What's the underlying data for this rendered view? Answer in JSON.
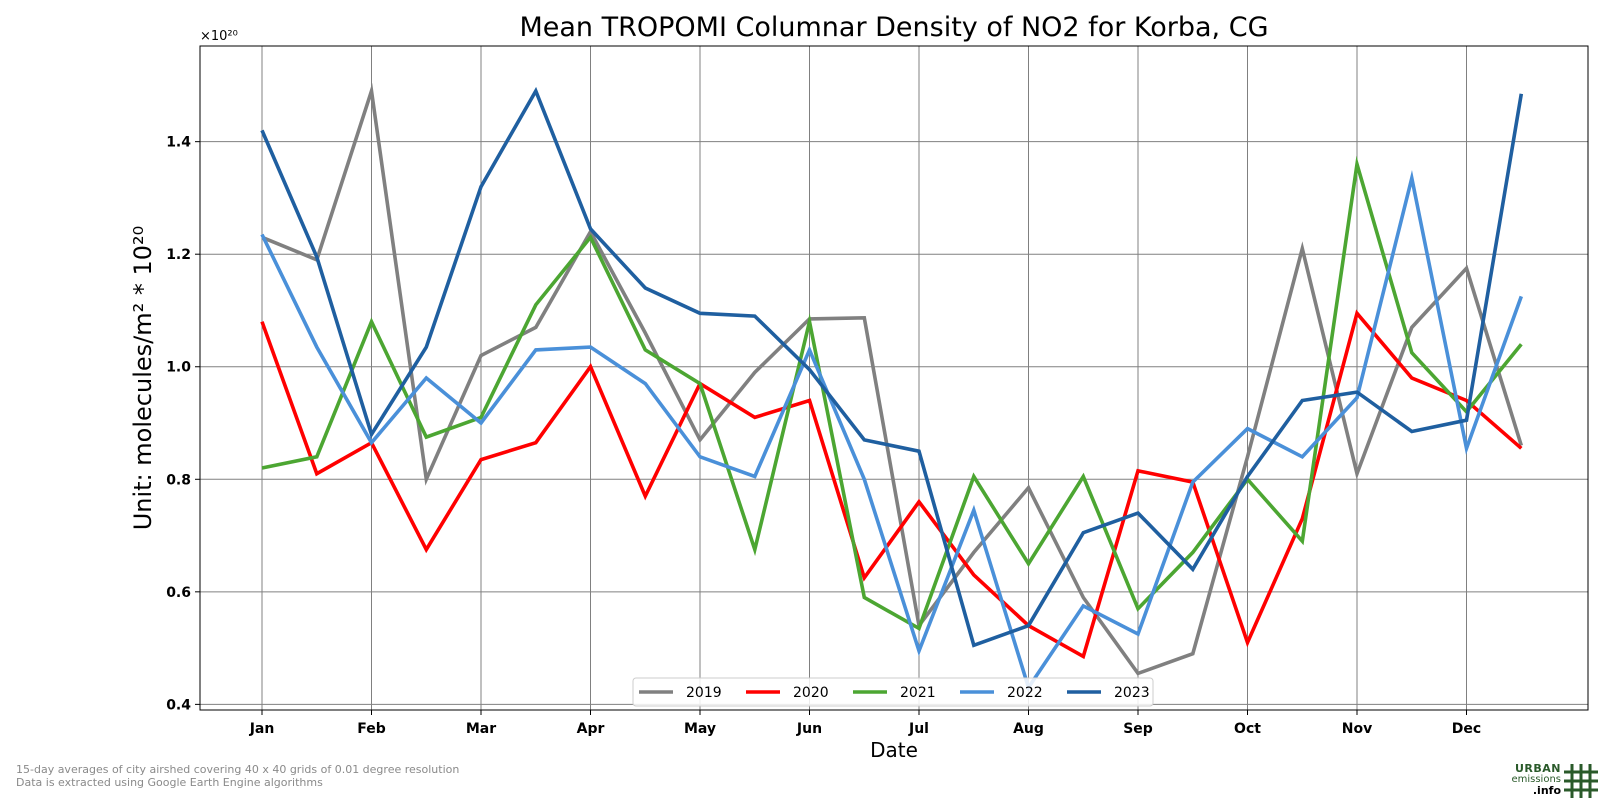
{
  "chart_data": {
    "type": "line",
    "title": "Mean TROPOMI Columnar Density of NO2 for Korba, CG",
    "xlabel": "Date",
    "ylabel": "Unit: molecules/m² * 10²⁰",
    "y_exponent_label": "×10²⁰",
    "ylim": [
      0.39,
      1.57
    ],
    "yticks": [
      0.4,
      0.6,
      0.8,
      1.0,
      1.2,
      1.4
    ],
    "ytick_labels": [
      "0.4",
      "0.6",
      "0.8",
      "1.0",
      "1.2",
      "1.4"
    ],
    "xticks": [
      "Jan",
      "Feb",
      "Mar",
      "Apr",
      "May",
      "Jun",
      "Jul",
      "Aug",
      "Sep",
      "Oct",
      "Nov",
      "Dec"
    ],
    "grid": true,
    "legend_position": "bottom-center",
    "series": [
      {
        "name": "2019",
        "color": "#808080",
        "values": [
          1.23,
          1.19,
          1.49,
          0.8,
          1.02,
          1.07,
          1.24,
          1.06,
          0.87,
          0.99,
          1.085,
          1.087,
          0.54,
          0.67,
          0.785,
          0.59,
          0.455,
          0.49,
          0.84,
          1.21,
          0.81,
          1.07,
          1.175,
          0.86
        ]
      },
      {
        "name": "2020",
        "color": "#ff0000",
        "values": [
          1.08,
          0.81,
          0.865,
          0.675,
          0.835,
          0.865,
          1.0,
          0.77,
          0.97,
          0.91,
          0.94,
          0.625,
          0.76,
          0.63,
          0.54,
          0.485,
          0.815,
          0.795,
          0.51,
          0.73,
          1.095,
          0.98,
          0.94,
          0.855
        ]
      },
      {
        "name": "2021",
        "color": "#4ca632",
        "values": [
          0.82,
          0.84,
          1.08,
          0.875,
          0.91,
          1.11,
          1.23,
          1.03,
          0.97,
          0.675,
          1.08,
          0.59,
          0.535,
          0.805,
          0.65,
          0.805,
          0.57,
          0.67,
          0.8,
          0.69,
          1.36,
          1.025,
          0.92,
          1.04
        ]
      },
      {
        "name": "2022",
        "color": "#4a90d9",
        "values": [
          1.235,
          1.035,
          0.865,
          0.98,
          0.9,
          1.03,
          1.035,
          0.97,
          0.84,
          0.805,
          1.03,
          0.8,
          0.495,
          0.745,
          0.43,
          0.575,
          0.525,
          0.795,
          0.89,
          0.84,
          0.945,
          1.335,
          0.855,
          1.125
        ]
      },
      {
        "name": "2023",
        "color": "#1f5fa0",
        "values": [
          1.42,
          1.195,
          0.88,
          1.035,
          1.32,
          1.49,
          1.245,
          1.14,
          1.095,
          1.09,
          0.995,
          0.87,
          0.85,
          0.505,
          0.54,
          0.705,
          0.74,
          0.64,
          0.805,
          0.94,
          0.955,
          0.885,
          0.905,
          1.485
        ]
      }
    ]
  },
  "footnote": {
    "line1": "15-day averages of city airshed covering 40 x 40 grids of 0.01 degree resolution",
    "line2": "Data is extracted using Google Earth Engine algorithms"
  },
  "logo": {
    "line1": "URBAN",
    "line2": "emissions",
    "line3": ".info",
    "color": "#2a5a2a"
  }
}
